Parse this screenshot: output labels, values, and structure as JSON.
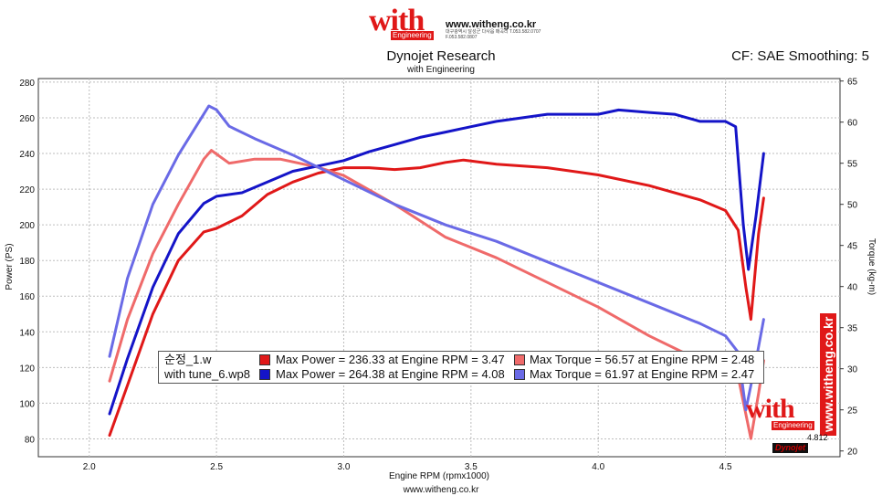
{
  "header": {
    "logo_word": "with",
    "logo_sub": "Engineering",
    "site_url": "www.witheng.co.kr",
    "site_small": "대구광역시 달성군 다사읍 매곡리 T.053.582.0707 F.053.582.0807"
  },
  "title": "Dynojet Research",
  "subtitle": "with Engineering",
  "correction": "CF: SAE Smoothing: 5",
  "footer_url": "www.witheng.co.kr",
  "watermark": {
    "with": "with",
    "engineering": "Engineering",
    "vertical_url": "www.witheng.co.kr",
    "end_value": "4.812",
    "brand": "Dynojet"
  },
  "colors": {
    "stock_power": "#e01818",
    "stock_torque": "#ef6a6a",
    "tuned_power": "#1414c8",
    "tuned_torque": "#6a6ae6",
    "grid": "#bdbdbd"
  },
  "legend": {
    "rows": [
      {
        "name": "순정_1.w",
        "power": "Max Power = 236.33 at Engine RPM = 3.47",
        "torque": "Max Torque = 56.57 at Engine RPM = 2.48"
      },
      {
        "name": "with tune_6.wp8",
        "power": "Max Power = 264.38 at Engine RPM = 4.08",
        "torque": "Max Torque = 61.97 at Engine RPM = 2.47"
      }
    ]
  },
  "chart_data": {
    "type": "line",
    "xlabel": "Engine RPM (rpmx1000)",
    "ylabel": "Power (PS)",
    "y2label": "Torque (kg-m)",
    "xlim": [
      1.8,
      4.95
    ],
    "ylim": [
      70,
      282
    ],
    "y2lim": [
      19.3,
      65.3
    ],
    "xticks": [
      2.0,
      2.5,
      3.0,
      3.5,
      4.0,
      4.5
    ],
    "yticks": [
      80,
      100,
      120,
      140,
      160,
      180,
      200,
      220,
      240,
      260,
      280
    ],
    "y2ticks": [
      20,
      25,
      30,
      35,
      40,
      45,
      50,
      55,
      60,
      65
    ],
    "grid": true,
    "series": [
      {
        "name": "순정_1.w",
        "quantity": "power",
        "axis": "left",
        "color": "#e01818",
        "x": [
          2.08,
          2.15,
          2.25,
          2.35,
          2.45,
          2.5,
          2.6,
          2.7,
          2.8,
          2.9,
          3.0,
          3.1,
          3.2,
          3.3,
          3.4,
          3.47,
          3.6,
          3.8,
          4.0,
          4.2,
          4.4,
          4.5,
          4.55,
          4.58,
          4.6,
          4.63,
          4.65
        ],
        "y": [
          82,
          110,
          150,
          180,
          196,
          198,
          205,
          217,
          224,
          229,
          232,
          232,
          231,
          232,
          235,
          236.3,
          234,
          232,
          228,
          222,
          214,
          208,
          197,
          165,
          147,
          195,
          215
        ]
      },
      {
        "name": "순정_1.w",
        "quantity": "torque",
        "axis": "right",
        "color": "#ef6a6a",
        "x": [
          2.08,
          2.15,
          2.25,
          2.35,
          2.45,
          2.48,
          2.55,
          2.65,
          2.75,
          2.9,
          3.0,
          3.2,
          3.4,
          3.6,
          3.8,
          4.0,
          4.2,
          4.4,
          4.55,
          4.6,
          4.63,
          4.65
        ],
        "y": [
          28.5,
          36,
          44,
          50,
          55.5,
          56.57,
          55,
          55.5,
          55.5,
          54.5,
          53.5,
          50,
          46,
          43.5,
          40.5,
          37.5,
          34,
          31,
          29,
          21.5,
          27,
          31
        ]
      },
      {
        "name": "with tune_6.wp8",
        "quantity": "power",
        "axis": "left",
        "color": "#1414c8",
        "x": [
          2.08,
          2.15,
          2.25,
          2.35,
          2.45,
          2.5,
          2.6,
          2.7,
          2.8,
          2.9,
          3.0,
          3.1,
          3.2,
          3.3,
          3.4,
          3.5,
          3.6,
          3.7,
          3.8,
          3.9,
          4.0,
          4.08,
          4.2,
          4.3,
          4.4,
          4.5,
          4.54,
          4.57,
          4.59,
          4.62,
          4.65
        ],
        "y": [
          94,
          125,
          165,
          195,
          212,
          216,
          218,
          224,
          230,
          233,
          236,
          241,
          245,
          249,
          252,
          255,
          258,
          260,
          262,
          262,
          262,
          264.38,
          263,
          262,
          258,
          258,
          255,
          200,
          175,
          205,
          240
        ]
      },
      {
        "name": "with tune_6.wp8",
        "quantity": "torque",
        "axis": "right",
        "color": "#6a6ae6",
        "x": [
          2.08,
          2.15,
          2.25,
          2.35,
          2.47,
          2.5,
          2.55,
          2.65,
          2.8,
          3.0,
          3.2,
          3.4,
          3.6,
          3.8,
          4.0,
          4.2,
          4.4,
          4.5,
          4.55,
          4.58,
          4.62,
          4.65
        ],
        "y": [
          31.5,
          41,
          50,
          56,
          61.97,
          61.5,
          59.5,
          58,
          56,
          53,
          50,
          47.5,
          45.5,
          43,
          40.5,
          38,
          35.5,
          34,
          32,
          25,
          31,
          36
        ]
      }
    ]
  }
}
